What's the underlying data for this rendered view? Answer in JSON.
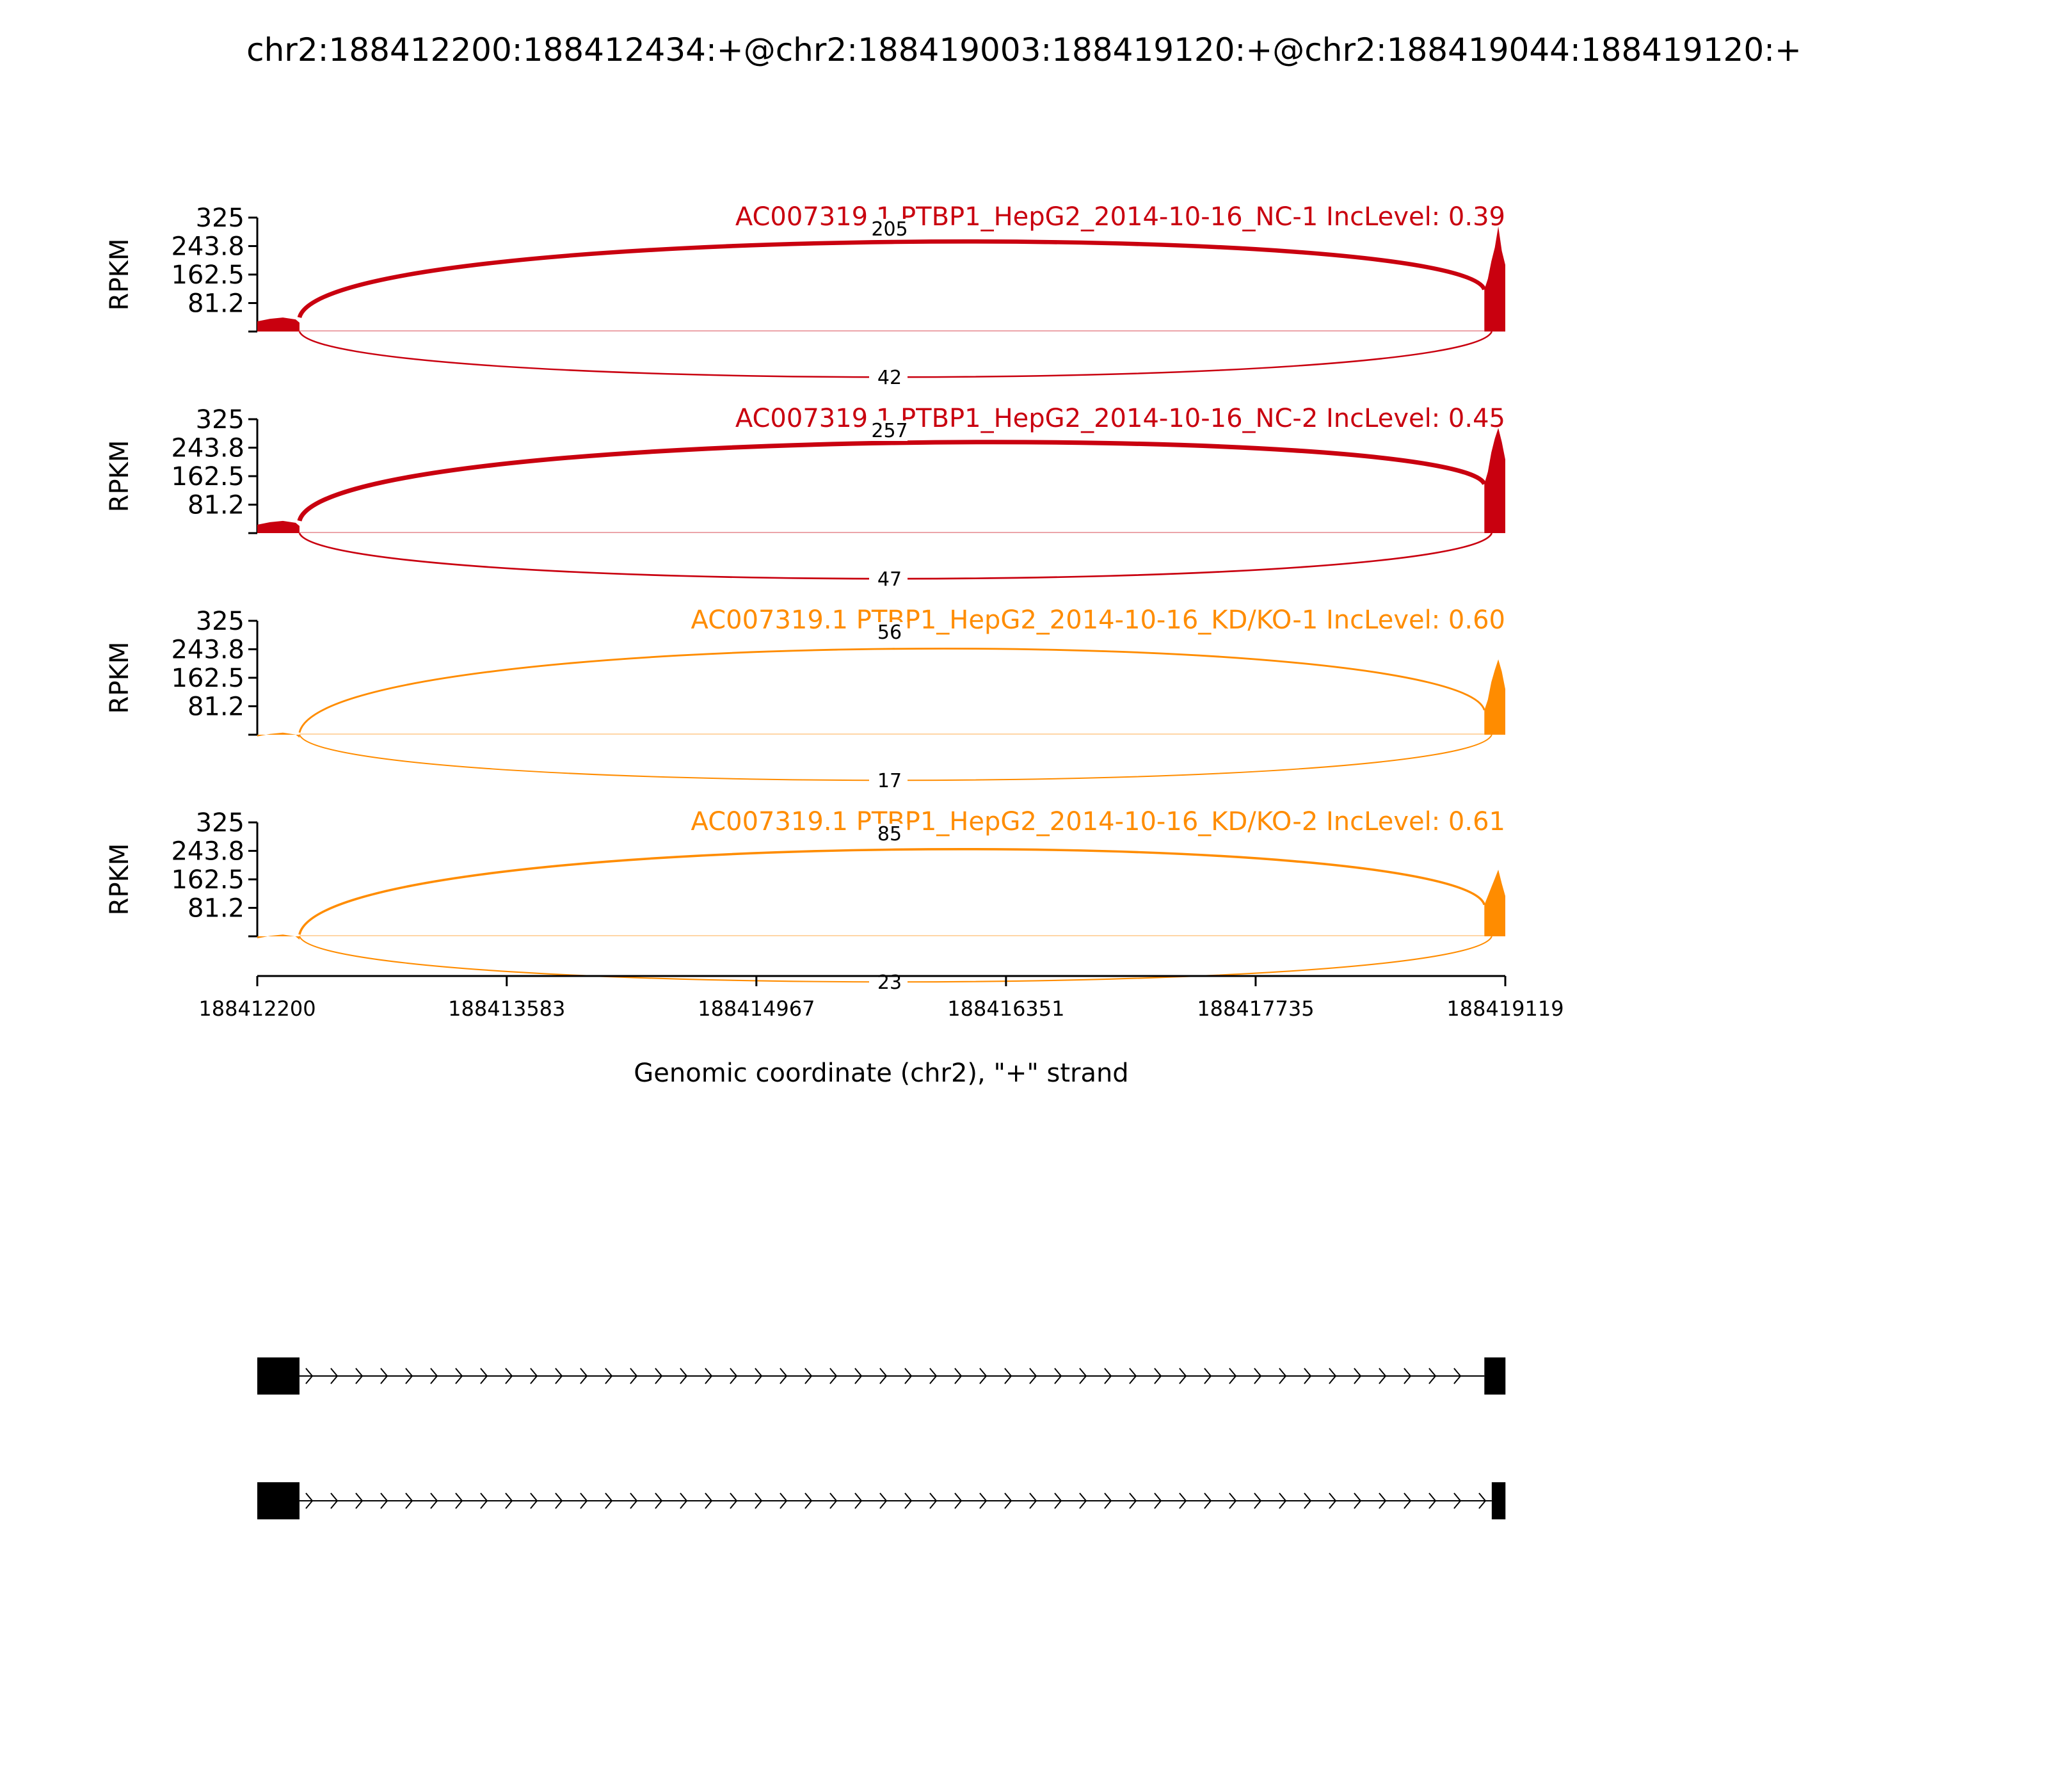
{
  "title": "chr2:188412200:188412434:+@chr2:188419003:188419120:+@chr2:188419044:188419120:+",
  "chart_data": {
    "type": "area",
    "title": "chr2:188412200:188412434:+@chr2:188419003:188419120:+@chr2:188419044:188419120:+",
    "xlabel": "Genomic coordinate (chr2), \"+\" strand",
    "ylabel": "RPKM",
    "xlim": [
      188412200,
      188419119
    ],
    "ylim": [
      0,
      325
    ],
    "x_ticks": [
      "188412200",
      "188413583",
      "188414967",
      "188416351",
      "188417735",
      "188419119"
    ],
    "y_ticks": [
      "325",
      "243.8",
      "162.5",
      "81.2"
    ],
    "exons": {
      "upstream": [
        188412200,
        188412434
      ],
      "short_downstream": [
        188419003,
        188419120
      ],
      "long_downstream": [
        188419044,
        188419120
      ]
    },
    "series": [
      {
        "name": "AC007319.1 PTBP1_HepG2_2014-10-16_NC-1 IncLevel: 0.39",
        "color": "#C9000F",
        "upstream_coverage": 40,
        "downstream_coverage": [
          120,
          150,
          200,
          240,
          300,
          230,
          190
        ],
        "junctions": [
          {
            "label": "205",
            "from": 188412434,
            "to": 188419003,
            "side": "above"
          },
          {
            "label": "42",
            "from": 188412434,
            "to": 188419044,
            "side": "below"
          }
        ]
      },
      {
        "name": "AC007319.1 PTBP1_HepG2_2014-10-16_NC-2 IncLevel: 0.45",
        "color": "#C9000F",
        "upstream_coverage": 35,
        "downstream_coverage": [
          140,
          175,
          230,
          270,
          300,
          260,
          210
        ],
        "junctions": [
          {
            "label": "257",
            "from": 188412434,
            "to": 188419003,
            "side": "above"
          },
          {
            "label": "47",
            "from": 188412434,
            "to": 188419044,
            "side": "below"
          }
        ]
      },
      {
        "name": "AC007319.1 PTBP1_HepG2_2014-10-16_KD/KO-1 IncLevel: 0.60",
        "color": "#FF8C00",
        "upstream_coverage": 6,
        "downstream_coverage": [
          70,
          100,
          150,
          185,
          215,
          180,
          130
        ],
        "junctions": [
          {
            "label": "56",
            "from": 188412434,
            "to": 188419003,
            "side": "above"
          },
          {
            "label": "17",
            "from": 188412434,
            "to": 188419044,
            "side": "below"
          }
        ]
      },
      {
        "name": "AC007319.1 PTBP1_HepG2_2014-10-16_KD/KO-2 IncLevel: 0.61",
        "color": "#FF8C00",
        "upstream_coverage": 5,
        "downstream_coverage": [
          90,
          115,
          140,
          165,
          190,
          150,
          115
        ],
        "junctions": [
          {
            "label": "85",
            "from": 188412434,
            "to": 188419003,
            "side": "above"
          },
          {
            "label": "23",
            "from": 188412434,
            "to": 188419044,
            "side": "below"
          }
        ]
      }
    ],
    "isoforms": [
      {
        "exons": [
          [
            188412200,
            188412434
          ],
          [
            188419003,
            188419120
          ]
        ]
      },
      {
        "exons": [
          [
            188412200,
            188412434
          ],
          [
            188419044,
            188419120
          ]
        ]
      }
    ]
  }
}
